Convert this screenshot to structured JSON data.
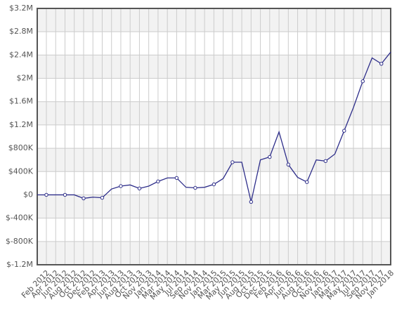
{
  "chart_data": {
    "type": "line",
    "categories": [
      "Feb 2012",
      "Apr 2012",
      "Jun 2012",
      "Aug 2012",
      "Oct 2012",
      "Dec 2012",
      "Feb 2013",
      "Apr 2013",
      "Jun 2013",
      "Aug 2013",
      "Oct 2013",
      "Nov 2013",
      "Jan 2014",
      "Mar 2014",
      "May 2014",
      "Jul 2014",
      "Sep 2014",
      "Nov 2014",
      "Jan 2015",
      "Mar 2015",
      "May 2015",
      "Jun 2015",
      "Aug 2015",
      "Oct 2015",
      "Dec 2015",
      "Feb 2016",
      "Apr 2016",
      "Jun 2016",
      "Aug 2016",
      "Oct 2016",
      "Nov 2016",
      "Jan 2017",
      "Mar 2017",
      "May 2017",
      "Jul 2017",
      "Sep 2017",
      "Nov 2017",
      "Jan 2018"
    ],
    "values": [
      0,
      0,
      0,
      0,
      -60000,
      -40000,
      -50000,
      100000,
      150000,
      170000,
      110000,
      150000,
      230000,
      290000,
      290000,
      130000,
      120000,
      130000,
      180000,
      280000,
      560000,
      560000,
      -120000,
      600000,
      650000,
      1080000,
      520000,
      300000,
      220000,
      600000,
      580000,
      700000,
      1100000,
      1500000,
      1950000,
      2350000,
      2250000,
      2450000
    ],
    "color": "#2e2e8a",
    "ylim": [
      -1200000,
      3200000
    ],
    "yticks": [
      {
        "value": -1200000,
        "label": "$-1.2M"
      },
      {
        "value": -800000,
        "label": "$-800K"
      },
      {
        "value": -400000,
        "label": "$-400K"
      },
      {
        "value": 0,
        "label": "$0"
      },
      {
        "value": 400000,
        "label": "$400K"
      },
      {
        "value": 800000,
        "label": "$800K"
      },
      {
        "value": 1200000,
        "label": "$1.2M"
      },
      {
        "value": 1600000,
        "label": "$1.6M"
      },
      {
        "value": 2000000,
        "label": "$2M"
      },
      {
        "value": 2400000,
        "label": "$2.4M"
      },
      {
        "value": 2800000,
        "label": "$2.8M"
      },
      {
        "value": 3200000,
        "label": "$3.2M"
      }
    ],
    "grid": true
  }
}
